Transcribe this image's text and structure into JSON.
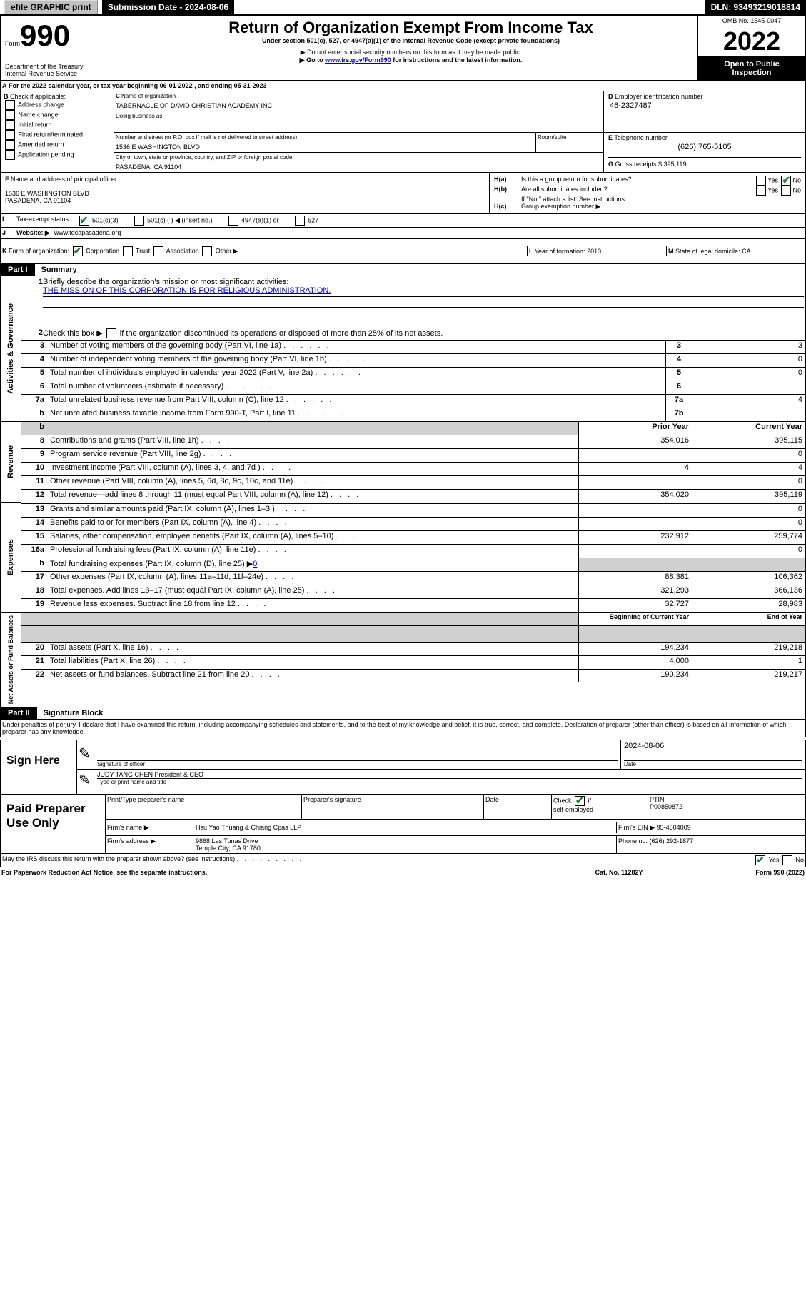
{
  "topbar": {
    "efile": "efile GRAPHIC print",
    "submission_label": "Submission Date - 2024-08-06",
    "dln_label": "DLN: 93493219018814"
  },
  "header": {
    "form_word": "Form",
    "form_no": "990",
    "dept": "Department of the Treasury",
    "irs": "Internal Revenue Service",
    "title": "Return of Organization Exempt From Income Tax",
    "subtitle": "Under section 501(c), 527, or 4947(a)(1) of the Internal Revenue Code (except private foundations)",
    "warn1": "▶ Do not enter social security numbers on this form as it may be made public.",
    "warn2_pre": "▶ Go to ",
    "warn2_link": "www.irs.gov/Form990",
    "warn2_post": " for instructions and the latest information.",
    "omb": "OMB No. 1545-0047",
    "year": "2022",
    "open": "Open to Public Inspection"
  },
  "A": {
    "text": "For the 2022 calendar year, or tax year beginning 06-01-2022   , and ending 05-31-2023"
  },
  "B": {
    "label": "Check if applicable:",
    "opts": [
      "Address change",
      "Name change",
      "Initial return",
      "Final return/terminated",
      "Amended return",
      "Application pending"
    ]
  },
  "C": {
    "name_label": "Name of organization",
    "name": "TABERNACLE OF DAVID CHRISTIAN ACADEMY INC",
    "dba_label": "Doing business as",
    "addr_label": "Number and street (or P.O. box if mail is not delivered to street address)",
    "room_label": "Room/suite",
    "addr": "1536 E WASHINGTON BLVD",
    "city_label": "City or town, state or province, country, and ZIP or foreign postal code",
    "city": "PASADENA, CA  91104"
  },
  "D": {
    "label": "Employer identification number",
    "value": "46-2327487"
  },
  "E": {
    "label": "Telephone number",
    "value": "(626) 765-5105"
  },
  "G": {
    "label": "Gross receipts $",
    "value": "395,119"
  },
  "F": {
    "label": "Name and address of principal officer:",
    "addr1": "1536 E WASHINGTON BLVD",
    "addr2": "PASADENA, CA  91104"
  },
  "H": {
    "a_label": "Is this a group return for subordinates?",
    "b_label": "Are all subordinates included?",
    "b_note": "If \"No,\" attach a list. See instructions.",
    "c_label": "Group exemption number ▶",
    "yes": "Yes",
    "no": "No"
  },
  "I": {
    "label": "Tax-exempt status:",
    "c3": "501(c)(3)",
    "c": "501(c) (  ) ◀ (insert no.)",
    "a1": "4947(a)(1) or",
    "s527": "527"
  },
  "J": {
    "label": "Website: ▶",
    "value": "www.tdcapasadena.org"
  },
  "K": {
    "label": "Form of organization:",
    "corp": "Corporation",
    "trust": "Trust",
    "assoc": "Association",
    "other": "Other ▶"
  },
  "L": {
    "label": "Year of formation:",
    "value": "2013"
  },
  "M": {
    "label": "State of legal domicile:",
    "value": "CA"
  },
  "part1": {
    "header": "Part I",
    "title": "Summary",
    "q1_label": "Briefly describe the organization's mission or most significant activities:",
    "q1_value": "THE MISSION OF THIS CORPORATION IS FOR RELIGIOUS ADMINISTRATION.",
    "q2": "Check this box ▶",
    "q2_post": " if the organization discontinued its operations or disposed of more than 25% of its net assets.",
    "rows_gov": [
      {
        "n": "3",
        "label": "Number of voting members of the governing body (Part VI, line 1a)",
        "box": "3",
        "v": "3"
      },
      {
        "n": "4",
        "label": "Number of independent voting members of the governing body (Part VI, line 1b)",
        "box": "4",
        "v": "0"
      },
      {
        "n": "5",
        "label": "Total number of individuals employed in calendar year 2022 (Part V, line 2a)",
        "box": "5",
        "v": "0"
      },
      {
        "n": "6",
        "label": "Total number of volunteers (estimate if necessary)",
        "box": "6",
        "v": ""
      },
      {
        "n": "7a",
        "label": "Total unrelated business revenue from Part VIII, column (C), line 12",
        "box": "7a",
        "v": "4"
      },
      {
        "n": "b",
        "label": "Net unrelated business taxable income from Form 990-T, Part I, line 11",
        "box": "7b",
        "v": ""
      }
    ],
    "prior_hdr": "Prior Year",
    "curr_hdr": "Current Year",
    "rows_rev": [
      {
        "n": "8",
        "label": "Contributions and grants (Part VIII, line 1h)",
        "p": "354,016",
        "c": "395,115"
      },
      {
        "n": "9",
        "label": "Program service revenue (Part VIII, line 2g)",
        "p": "",
        "c": "0"
      },
      {
        "n": "10",
        "label": "Investment income (Part VIII, column (A), lines 3, 4, and 7d )",
        "p": "4",
        "c": "4"
      },
      {
        "n": "11",
        "label": "Other revenue (Part VIII, column (A), lines 5, 6d, 8c, 9c, 10c, and 11e)",
        "p": "",
        "c": "0"
      },
      {
        "n": "12",
        "label": "Total revenue—add lines 8 through 11 (must equal Part VIII, column (A), line 12)",
        "p": "354,020",
        "c": "395,119"
      }
    ],
    "rows_exp": [
      {
        "n": "13",
        "label": "Grants and similar amounts paid (Part IX, column (A), lines 1–3 )",
        "p": "",
        "c": "0"
      },
      {
        "n": "14",
        "label": "Benefits paid to or for members (Part IX, column (A), line 4)",
        "p": "",
        "c": "0"
      },
      {
        "n": "15",
        "label": "Salaries, other compensation, employee benefits (Part IX, column (A), lines 5–10)",
        "p": "232,912",
        "c": "259,774"
      },
      {
        "n": "16a",
        "label": "Professional fundraising fees (Part IX, column (A), line 11e)",
        "p": "",
        "c": "0"
      },
      {
        "n": "b",
        "label": "Total fundraising expenses (Part IX, column (D), line 25) ▶",
        "p": "__GRAY__",
        "c": "__GRAY__",
        "extra": "0"
      },
      {
        "n": "17",
        "label": "Other expenses (Part IX, column (A), lines 11a–11d, 11f–24e)",
        "p": "88,381",
        "c": "106,362"
      },
      {
        "n": "18",
        "label": "Total expenses. Add lines 13–17 (must equal Part IX, column (A), line 25)",
        "p": "321,293",
        "c": "366,136"
      },
      {
        "n": "19",
        "label": "Revenue less expenses. Subtract line 18 from line 12",
        "p": "32,727",
        "c": "28,983"
      }
    ],
    "beg_hdr": "Beginning of Current Year",
    "end_hdr": "End of Year",
    "rows_net": [
      {
        "n": "20",
        "label": "Total assets (Part X, line 16)",
        "p": "194,234",
        "c": "219,218"
      },
      {
        "n": "21",
        "label": "Total liabilities (Part X, line 26)",
        "p": "4,000",
        "c": "1"
      },
      {
        "n": "22",
        "label": "Net assets or fund balances. Subtract line 21 from line 20",
        "p": "190,234",
        "c": "219,217"
      }
    ],
    "vlabels": {
      "gov": "Activities & Governance",
      "rev": "Revenue",
      "exp": "Expenses",
      "net": "Net Assets or Fund Balances"
    }
  },
  "part2": {
    "header": "Part II",
    "title": "Signature Block",
    "decl": "Under penalties of perjury, I declare that I have examined this return, including accompanying schedules and statements, and to the best of my knowledge and belief, it is true, correct, and complete. Declaration of preparer (other than officer) is based on all information of which preparer has any knowledge."
  },
  "sign": {
    "here": "Sign Here",
    "sig_label": "Signature of officer",
    "date_label": "Date",
    "date_value": "2024-08-06",
    "name_value": "JUDY TANG CHEN  President & CEO",
    "name_label": "Type or print name and title"
  },
  "paid": {
    "title": "Paid Preparer Use Only",
    "col1": "Print/Type preparer's name",
    "col2": "Preparer's signature",
    "col3": "Date",
    "check_label": "Check",
    "self_emp": "self-employed",
    "ptin_label": "PTIN",
    "ptin": "P00850872",
    "firm_name_label": "Firm's name   ▶",
    "firm_name": "Hsu Yao Thuang & Chiang Cpas LLP",
    "firm_ein_label": "Firm's EIN ▶",
    "firm_ein": "95-4504009",
    "firm_addr_label": "Firm's address ▶",
    "firm_addr1": "9868 Las Tunas Drive",
    "firm_addr2": "Temple City, CA  91780",
    "phone_label": "Phone no.",
    "phone": "(626) 292-1877"
  },
  "footer": {
    "discuss": "May the IRS discuss this return with the preparer shown above? (see instructions)",
    "yes": "Yes",
    "no": "No",
    "paperwork": "For Paperwork Reduction Act Notice, see the separate instructions.",
    "cat": "Cat. No. 11282Y",
    "form": "Form 990 (2022)"
  }
}
